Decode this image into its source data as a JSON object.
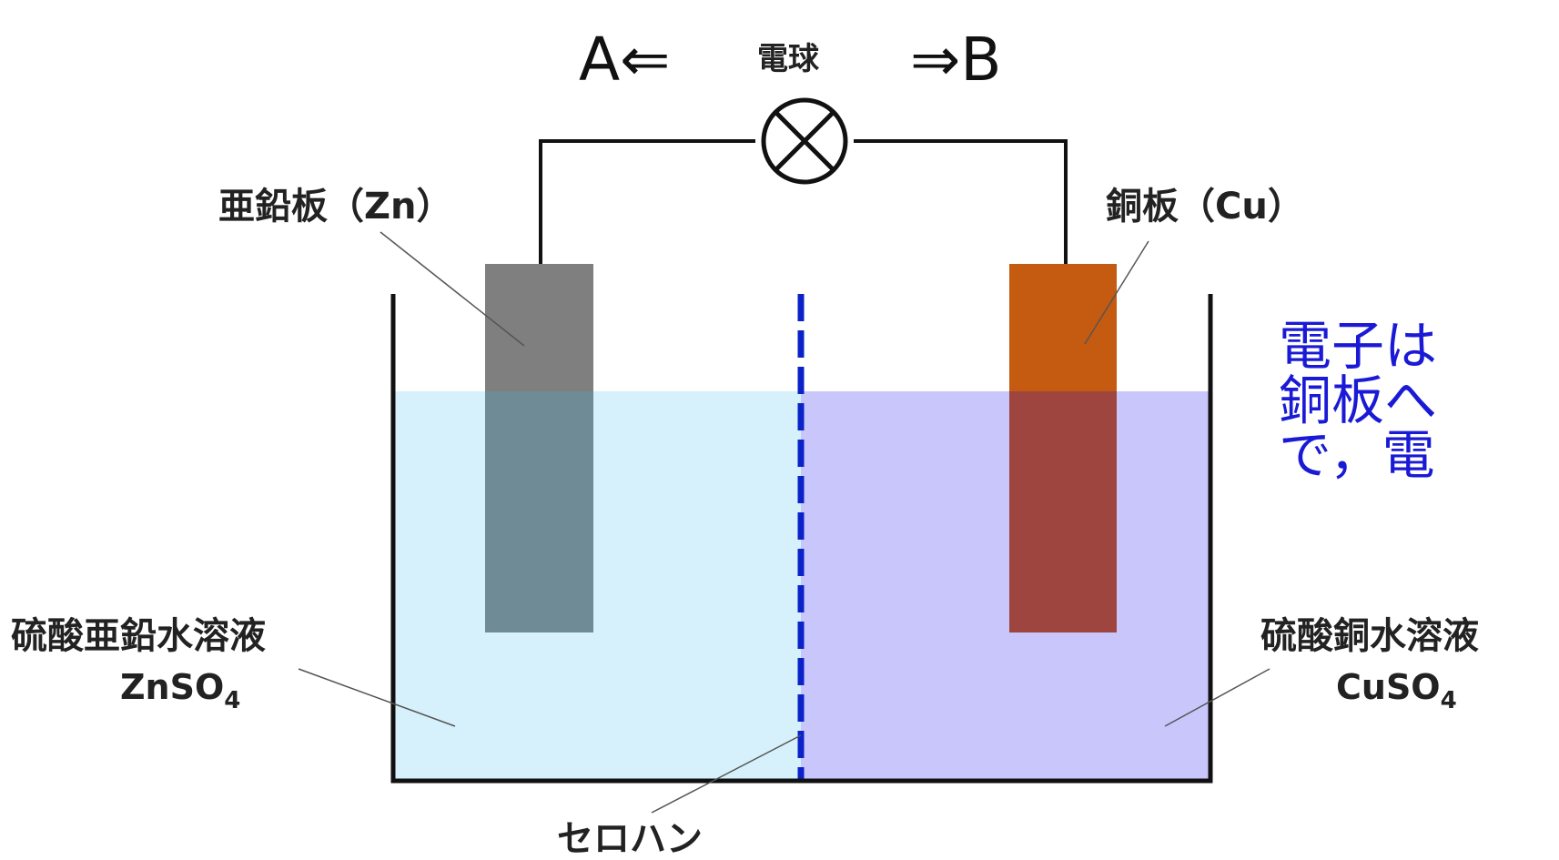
{
  "top": {
    "left_direction": "A⇐",
    "bulb_label": "電球",
    "right_direction": "⇒B"
  },
  "electrodes": {
    "zinc_label": "亜鉛板（Zn）",
    "copper_label": "銅板（Cu）"
  },
  "solutions": {
    "left_name": "硫酸亜鉛水溶液",
    "left_formula_base": "ZnSO",
    "left_formula_sub": "4",
    "right_name": "硫酸銅水溶液",
    "right_formula_base": "CuSO",
    "right_formula_sub": "4"
  },
  "separator_label": "セロハン",
  "annotation": {
    "line1": "電子は",
    "line2": "銅板へ",
    "line3": "で，電"
  },
  "colors": {
    "zinc_plate": "#7f7f7f",
    "copper_plate": "#c55a11",
    "zinc_solution": "#d6f1fb",
    "copper_solution": "#c9c6fb",
    "membrane": "#0a22c8",
    "annotation_text": "#1a1ad6"
  }
}
